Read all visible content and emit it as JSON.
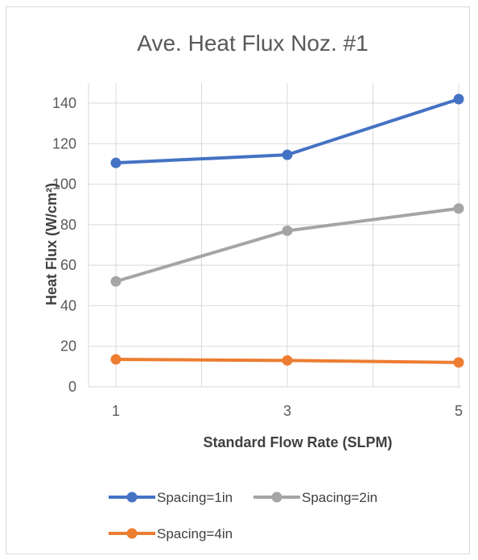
{
  "chart_data": {
    "type": "line",
    "title": "Ave. Heat Flux Noz. #1",
    "xlabel": "Standard Flow Rate (SLPM)",
    "ylabel": "Heat Flux (W/cm²)",
    "x": [
      1,
      3,
      5
    ],
    "x_ticks": [
      "1",
      "3",
      "5"
    ],
    "y_ticks": [
      "0",
      "20",
      "40",
      "60",
      "80",
      "100",
      "120",
      "140"
    ],
    "ylim": [
      0,
      150
    ],
    "grid": true,
    "legend_position": "bottom",
    "series": [
      {
        "name": "Spacing=1in",
        "color": "#4472c4",
        "values": [
          110.5,
          114.5,
          142
        ]
      },
      {
        "name": "Spacing=2in",
        "color": "#a5a5a5",
        "values": [
          52,
          77,
          88
        ]
      },
      {
        "name": "Spacing=4in",
        "color": "#ed7d31",
        "values": [
          13.5,
          13,
          12
        ]
      }
    ]
  }
}
